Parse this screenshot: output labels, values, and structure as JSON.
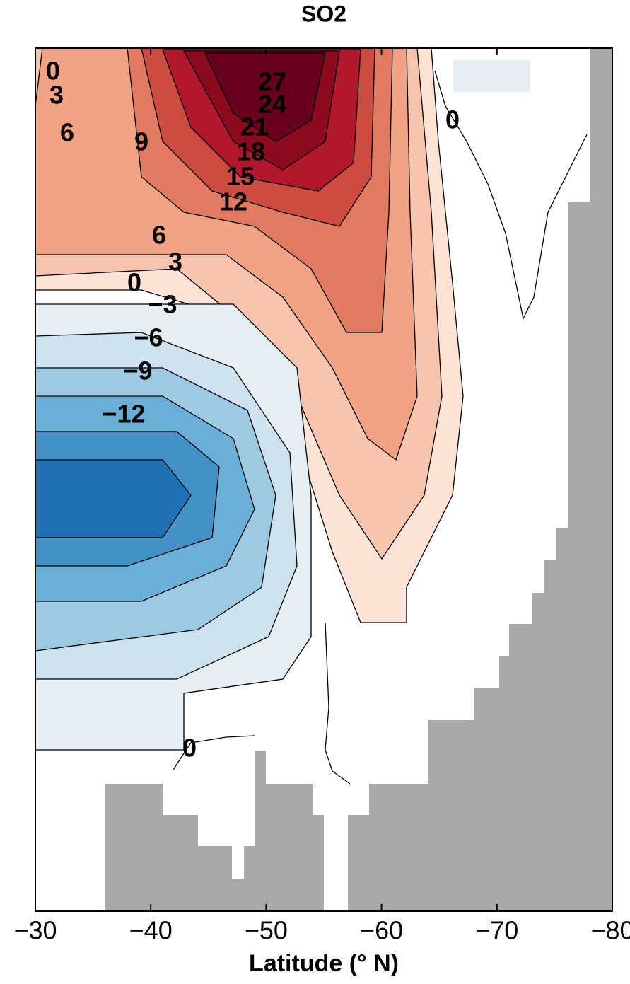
{
  "chart_data": {
    "type": "contour",
    "title": "SO2",
    "x_label": "Latitude (° N)",
    "xlim": [
      -30,
      -80
    ],
    "xticks": [
      {
        "value": -30,
        "label": "−30"
      },
      {
        "value": -40,
        "label": "−40"
      },
      {
        "value": -50,
        "label": "−50"
      },
      {
        "value": -60,
        "label": "−60"
      },
      {
        "value": -70,
        "label": "−70"
      },
      {
        "value": -80,
        "label": "−80"
      }
    ],
    "contour_labels": [
      0,
      3,
      6,
      9,
      27,
      24,
      21,
      18,
      15,
      12,
      6,
      3,
      0,
      {
        "value": -3,
        "label": "−3"
      },
      {
        "value": -6,
        "label": "−6"
      },
      {
        "value": -9,
        "label": "−9"
      },
      {
        "value": -12,
        "label": "−12"
      },
      0,
      0
    ]
  }
}
